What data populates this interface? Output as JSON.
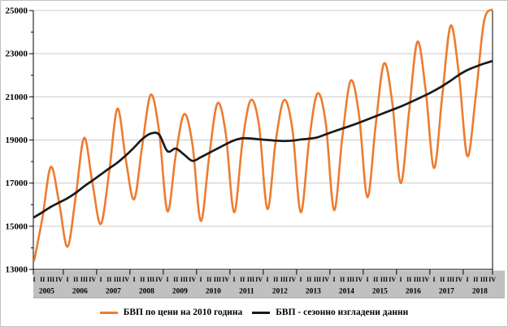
{
  "chart": {
    "y_axis_labels": [
      "13000",
      "15000",
      "17000",
      "19000",
      "21000",
      "23000",
      "25000"
    ],
    "quarter_labels": [
      "I",
      "II",
      "III",
      "IV"
    ],
    "years": [
      "2005",
      "2006",
      "2007",
      "2008",
      "2009",
      "2010",
      "2011",
      "2012",
      "2013",
      "2014",
      "2015",
      "2016",
      "2017",
      "2018"
    ],
    "colors": {
      "series_raw": "#ED7C2F",
      "series_adjusted": "#1A1A1A",
      "gridline": "#C9C9C9",
      "axis": "#000000",
      "band_fill": "#C0C0C0",
      "band_edge": "#9E9E9E"
    }
  },
  "legend": [
    {
      "label": "БВП по цени на 2010 година"
    },
    {
      "label": "БВП - сезонно изгладени данни"
    }
  ],
  "chart_data": {
    "type": "line",
    "title": "",
    "xlabel": "",
    "ylabel": "",
    "ylim": [
      13000,
      25000
    ],
    "y_tick_step": 2000,
    "grid": "horizontal",
    "legend_position": "bottom",
    "x_structure": {
      "years": [
        "2005",
        "2006",
        "2007",
        "2008",
        "2009",
        "2010",
        "2011",
        "2012",
        "2013",
        "2014",
        "2015",
        "2016",
        "2017",
        "2018"
      ],
      "quarters_per_year": [
        "I",
        "II",
        "III",
        "IV"
      ]
    },
    "series": [
      {
        "name": "БВП по цени на 2010 година",
        "color": "#ED7C2F",
        "values": [
          13400,
          15400,
          17750,
          16100,
          14050,
          16400,
          19100,
          17000,
          15100,
          17500,
          20450,
          18100,
          16250,
          18800,
          21100,
          19400,
          15700,
          18300,
          20200,
          18800,
          15250,
          18200,
          20700,
          19300,
          15650,
          18900,
          20850,
          19650,
          15800,
          18950,
          20850,
          19500,
          15650,
          18950,
          21150,
          19800,
          15750,
          19150,
          21750,
          20150,
          16350,
          19700,
          22550,
          20700,
          17000,
          20300,
          23550,
          21300,
          17700,
          21100,
          24300,
          22000,
          18250,
          21000,
          24500,
          25050
        ]
      },
      {
        "name": "БВП - сезонно изгладени данни",
        "color": "#1A1A1A",
        "values": [
          15420,
          15650,
          15900,
          16100,
          16300,
          16550,
          16850,
          17120,
          17400,
          17680,
          17950,
          18280,
          18650,
          19050,
          19300,
          19250,
          18480,
          18600,
          18320,
          18030,
          18200,
          18400,
          18600,
          18800,
          18980,
          19080,
          19070,
          19030,
          19000,
          18970,
          18950,
          18970,
          19020,
          19060,
          19120,
          19260,
          19400,
          19530,
          19660,
          19800,
          19950,
          20100,
          20250,
          20400,
          20550,
          20720,
          20900,
          21080,
          21280,
          21500,
          21750,
          22020,
          22240,
          22400,
          22540,
          22660
        ]
      }
    ]
  }
}
